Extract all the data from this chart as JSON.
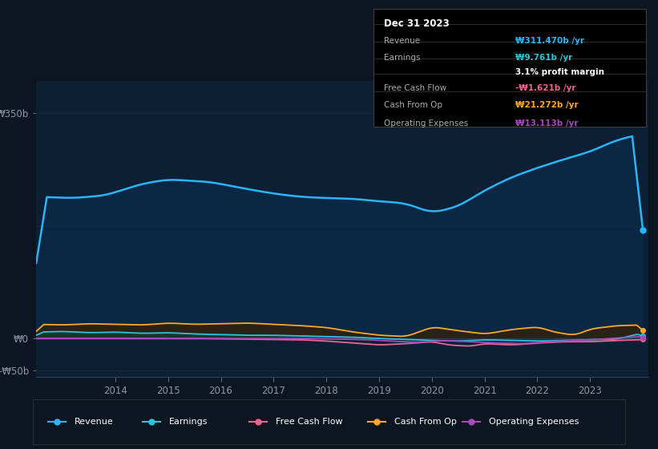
{
  "bg_color": "#0d1520",
  "plot_bg_color": "#0d1f35",
  "plot_bg_upper": "#060e18",
  "grid_color": "#1a2e45",
  "ylim": [
    -60,
    400
  ],
  "ytick_positions": [
    350,
    0,
    -50
  ],
  "ytick_labels": [
    "₩350b",
    "₩0",
    "-₩50b"
  ],
  "xtick_positions": [
    2014,
    2015,
    2016,
    2017,
    2018,
    2019,
    2020,
    2021,
    2022,
    2023
  ],
  "legend_items": [
    "Revenue",
    "Earnings",
    "Free Cash Flow",
    "Cash From Op",
    "Operating Expenses"
  ],
  "legend_colors": [
    "#29b6f6",
    "#26c6da",
    "#f06292",
    "#ffa726",
    "#ab47bc"
  ],
  "revenue_color": "#29b6f6",
  "revenue_fill": "#0a2744",
  "earnings_color": "#26c6da",
  "earnings_fill": "#1a3530",
  "cashop_color": "#ffa726",
  "cashop_fill": "#2a2215",
  "fcf_color": "#f06292",
  "opex_color": "#ab47bc",
  "tooltip": {
    "date": "Dec 31 2023",
    "revenue_label": "Revenue",
    "revenue_val": "₩311.470b /yr",
    "earnings_label": "Earnings",
    "earnings_val": "₩9.761b /yr",
    "margin": "3.1% profit margin",
    "fcf_label": "Free Cash Flow",
    "fcf_val": "-₩1.621b /yr",
    "cashop_label": "Cash From Op",
    "cashop_val": "₩21.272b /yr",
    "opex_label": "Operating Expenses",
    "opex_val": "₩13.113b /yr"
  }
}
